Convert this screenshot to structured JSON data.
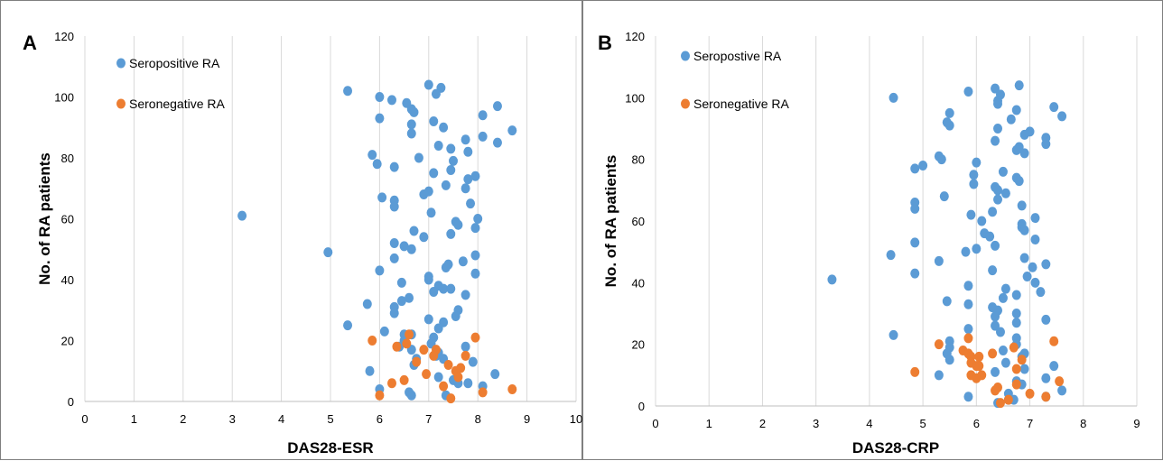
{
  "chart_data": [
    {
      "type": "scatter",
      "panel_label": "A",
      "xlabel": "DAS28-ESR",
      "ylabel": "No. of RA patients",
      "xlim": [
        0,
        10
      ],
      "ylim": [
        0,
        120
      ],
      "x_ticks": [
        "0",
        "1",
        "2",
        "3",
        "4",
        "5",
        "6",
        "7",
        "8",
        "9",
        "10"
      ],
      "y_ticks": [
        "0",
        "20",
        "40",
        "60",
        "80",
        "100",
        "120"
      ],
      "grid": "vertical",
      "legend_position": "top-left",
      "series": [
        {
          "name": "Seropositive RA",
          "color": "#5b9bd5",
          "points": [
            [
              7.0,
              104
            ],
            [
              7.25,
              103
            ],
            [
              5.35,
              102
            ],
            [
              7.15,
              101
            ],
            [
              6.0,
              100
            ],
            [
              6.25,
              99
            ],
            [
              6.55,
              98
            ],
            [
              6.65,
              96
            ],
            [
              8.4,
              97
            ],
            [
              6.7,
              95
            ],
            [
              6.0,
              93
            ],
            [
              7.1,
              92
            ],
            [
              8.1,
              94
            ],
            [
              6.65,
              91
            ],
            [
              7.3,
              90
            ],
            [
              6.65,
              88
            ],
            [
              8.7,
              89
            ],
            [
              8.1,
              87
            ],
            [
              7.75,
              86
            ],
            [
              8.4,
              85
            ],
            [
              7.2,
              84
            ],
            [
              7.45,
              83
            ],
            [
              7.8,
              82
            ],
            [
              5.85,
              81
            ],
            [
              6.8,
              80
            ],
            [
              7.5,
              79
            ],
            [
              5.95,
              78
            ],
            [
              6.3,
              77
            ],
            [
              7.45,
              76
            ],
            [
              7.1,
              75
            ],
            [
              7.95,
              74
            ],
            [
              7.8,
              73
            ],
            [
              7.0,
              69
            ],
            [
              7.35,
              71
            ],
            [
              7.75,
              70
            ],
            [
              6.9,
              68
            ],
            [
              6.05,
              67
            ],
            [
              6.3,
              66
            ],
            [
              7.85,
              65
            ],
            [
              6.3,
              64
            ],
            [
              7.05,
              62
            ],
            [
              3.2,
              61
            ],
            [
              8.0,
              60
            ],
            [
              7.55,
              59
            ],
            [
              7.6,
              58
            ],
            [
              7.95,
              57
            ],
            [
              6.7,
              56
            ],
            [
              7.45,
              55
            ],
            [
              6.9,
              54
            ],
            [
              6.3,
              52
            ],
            [
              6.5,
              51
            ],
            [
              6.65,
              50
            ],
            [
              4.95,
              49
            ],
            [
              7.95,
              48
            ],
            [
              6.3,
              47
            ],
            [
              7.7,
              46
            ],
            [
              7.4,
              45
            ],
            [
              7.35,
              44
            ],
            [
              6.0,
              43
            ],
            [
              7.95,
              42
            ],
            [
              7.0,
              41
            ],
            [
              7.0,
              40
            ],
            [
              6.45,
              39
            ],
            [
              7.2,
              38
            ],
            [
              7.3,
              37
            ],
            [
              7.45,
              37
            ],
            [
              7.1,
              36
            ],
            [
              7.75,
              35
            ],
            [
              6.6,
              34
            ],
            [
              6.45,
              33
            ],
            [
              5.75,
              32
            ],
            [
              6.3,
              31
            ],
            [
              7.6,
              30
            ],
            [
              6.3,
              29
            ],
            [
              7.55,
              28
            ],
            [
              7.0,
              27
            ],
            [
              7.3,
              26
            ],
            [
              5.35,
              25
            ],
            [
              7.2,
              24
            ],
            [
              6.1,
              23
            ],
            [
              6.5,
              22
            ],
            [
              6.65,
              22
            ],
            [
              7.1,
              21
            ],
            [
              6.5,
              20
            ],
            [
              7.05,
              19
            ],
            [
              6.4,
              18
            ],
            [
              7.75,
              18
            ],
            [
              6.65,
              17
            ],
            [
              7.2,
              16
            ],
            [
              7.15,
              15
            ],
            [
              6.75,
              14
            ],
            [
              7.3,
              14
            ],
            [
              6.7,
              12
            ],
            [
              7.9,
              13
            ],
            [
              5.8,
              10
            ],
            [
              7.2,
              8
            ],
            [
              8.35,
              9
            ],
            [
              7.5,
              7
            ],
            [
              7.6,
              6
            ],
            [
              7.8,
              6
            ],
            [
              8.1,
              5
            ],
            [
              6.0,
              4
            ],
            [
              6.6,
              3
            ],
            [
              6.65,
              2
            ],
            [
              7.35,
              2
            ]
          ]
        },
        {
          "name": "Seronegative RA",
          "color": "#ed7d31",
          "points": [
            [
              5.85,
              20
            ],
            [
              6.6,
              22
            ],
            [
              7.95,
              21
            ],
            [
              6.35,
              18
            ],
            [
              6.55,
              19
            ],
            [
              6.9,
              17
            ],
            [
              7.15,
              17
            ],
            [
              7.1,
              15
            ],
            [
              7.75,
              15
            ],
            [
              6.75,
              13
            ],
            [
              7.4,
              12
            ],
            [
              7.55,
              10
            ],
            [
              7.65,
              11
            ],
            [
              6.95,
              9
            ],
            [
              7.6,
              8
            ],
            [
              6.5,
              7
            ],
            [
              6.25,
              6
            ],
            [
              7.3,
              5
            ],
            [
              8.1,
              3
            ],
            [
              8.7,
              4
            ],
            [
              6.0,
              2
            ],
            [
              7.45,
              1
            ]
          ]
        }
      ]
    },
    {
      "type": "scatter",
      "panel_label": "B",
      "xlabel": "DAS28-CRP",
      "ylabel": "No. of RA patients",
      "xlim": [
        0,
        9
      ],
      "ylim": [
        0,
        120
      ],
      "x_ticks": [
        "0",
        "1",
        "2",
        "3",
        "4",
        "5",
        "6",
        "7",
        "8",
        "9"
      ],
      "y_ticks": [
        "0",
        "20",
        "40",
        "60",
        "80",
        "100",
        "120"
      ],
      "grid": "vertical",
      "legend_position": "top-left",
      "series": [
        {
          "name": "Seropostive RA",
          "color": "#5b9bd5",
          "points": [
            [
              6.8,
              104
            ],
            [
              6.35,
              103
            ],
            [
              6.45,
              101
            ],
            [
              5.85,
              102
            ],
            [
              4.45,
              100
            ],
            [
              6.4,
              99
            ],
            [
              6.4,
              98
            ],
            [
              7.45,
              97
            ],
            [
              6.75,
              96
            ],
            [
              5.5,
              95
            ],
            [
              7.6,
              94
            ],
            [
              6.65,
              93
            ],
            [
              5.45,
              92
            ],
            [
              5.5,
              91
            ],
            [
              6.4,
              90
            ],
            [
              7.0,
              89
            ],
            [
              6.9,
              88
            ],
            [
              7.3,
              87
            ],
            [
              6.35,
              86
            ],
            [
              7.3,
              85
            ],
            [
              6.8,
              84
            ],
            [
              6.75,
              83
            ],
            [
              6.9,
              82
            ],
            [
              5.3,
              81
            ],
            [
              5.35,
              80
            ],
            [
              6.0,
              79
            ],
            [
              5.0,
              78
            ],
            [
              4.85,
              77
            ],
            [
              6.5,
              76
            ],
            [
              5.95,
              75
            ],
            [
              6.75,
              74
            ],
            [
              6.8,
              73
            ],
            [
              5.95,
              72
            ],
            [
              6.35,
              71
            ],
            [
              6.4,
              70
            ],
            [
              6.55,
              69
            ],
            [
              5.4,
              68
            ],
            [
              6.4,
              67
            ],
            [
              4.85,
              66
            ],
            [
              6.85,
              65
            ],
            [
              4.85,
              64
            ],
            [
              6.3,
              63
            ],
            [
              5.9,
              62
            ],
            [
              7.1,
              61
            ],
            [
              6.1,
              60
            ],
            [
              6.85,
              59
            ],
            [
              6.85,
              58
            ],
            [
              6.9,
              57
            ],
            [
              6.15,
              56
            ],
            [
              6.25,
              55
            ],
            [
              7.1,
              54
            ],
            [
              4.85,
              53
            ],
            [
              6.35,
              52
            ],
            [
              6.0,
              51
            ],
            [
              5.8,
              50
            ],
            [
              4.4,
              49
            ],
            [
              6.9,
              48
            ],
            [
              5.3,
              47
            ],
            [
              7.3,
              46
            ],
            [
              7.05,
              45
            ],
            [
              6.3,
              44
            ],
            [
              4.85,
              43
            ],
            [
              6.95,
              42
            ],
            [
              3.3,
              41
            ],
            [
              7.1,
              40
            ],
            [
              5.85,
              39
            ],
            [
              6.55,
              38
            ],
            [
              7.2,
              37
            ],
            [
              6.75,
              36
            ],
            [
              6.5,
              35
            ],
            [
              5.45,
              34
            ],
            [
              5.85,
              33
            ],
            [
              6.3,
              32
            ],
            [
              6.4,
              31
            ],
            [
              6.75,
              30
            ],
            [
              6.35,
              29
            ],
            [
              7.3,
              28
            ],
            [
              6.75,
              27
            ],
            [
              6.35,
              26
            ],
            [
              5.85,
              25
            ],
            [
              6.45,
              24
            ],
            [
              4.45,
              23
            ],
            [
              6.75,
              22
            ],
            [
              5.5,
              21
            ],
            [
              6.75,
              20
            ],
            [
              5.5,
              19
            ],
            [
              6.5,
              18
            ],
            [
              5.45,
              17
            ],
            [
              6.9,
              17
            ],
            [
              6.85,
              16
            ],
            [
              5.5,
              15
            ],
            [
              6.55,
              14
            ],
            [
              7.45,
              13
            ],
            [
              6.9,
              12
            ],
            [
              6.35,
              11
            ],
            [
              5.3,
              10
            ],
            [
              7.3,
              9
            ],
            [
              6.75,
              8
            ],
            [
              6.85,
              7
            ],
            [
              7.6,
              5
            ],
            [
              6.6,
              4
            ],
            [
              7.3,
              3
            ],
            [
              5.85,
              3
            ],
            [
              6.6,
              2
            ],
            [
              6.7,
              2
            ],
            [
              6.4,
              1
            ]
          ]
        },
        {
          "name": "Seronegative RA",
          "color": "#ed7d31",
          "points": [
            [
              5.85,
              22
            ],
            [
              7.45,
              21
            ],
            [
              5.3,
              20
            ],
            [
              6.7,
              19
            ],
            [
              5.75,
              18
            ],
            [
              5.85,
              17
            ],
            [
              6.3,
              17
            ],
            [
              5.9,
              16
            ],
            [
              6.05,
              16
            ],
            [
              6.85,
              15
            ],
            [
              5.9,
              14
            ],
            [
              6.0,
              13
            ],
            [
              6.05,
              13
            ],
            [
              6.75,
              12
            ],
            [
              4.85,
              11
            ],
            [
              5.9,
              10
            ],
            [
              6.1,
              10
            ],
            [
              6.0,
              9
            ],
            [
              7.55,
              8
            ],
            [
              6.75,
              7
            ],
            [
              6.4,
              6
            ],
            [
              6.35,
              5
            ],
            [
              7.0,
              4
            ],
            [
              7.3,
              3
            ],
            [
              6.6,
              2
            ],
            [
              6.45,
              1
            ]
          ]
        }
      ]
    }
  ]
}
